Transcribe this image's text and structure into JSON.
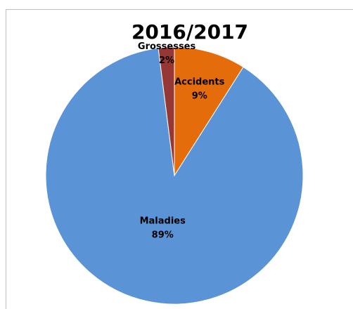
{
  "chart_data": {
    "type": "pie",
    "title": "2016/2017",
    "categories": [
      "Accidents",
      "Maladies",
      "Grossesses"
    ],
    "values": [
      9,
      89,
      2
    ],
    "value_labels": [
      "9%",
      "89%",
      "2%"
    ],
    "colors": [
      "#e46c0a",
      "#5b93d7",
      "#953735"
    ]
  }
}
